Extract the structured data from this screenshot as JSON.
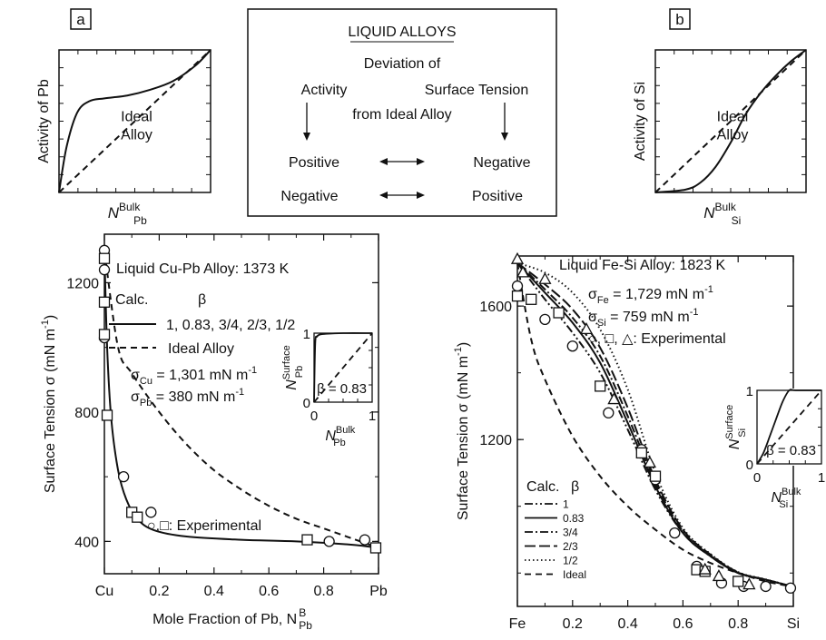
{
  "panel_labels": [
    "a",
    "b"
  ],
  "legend_box": {
    "title": "LIQUID ALLOYS",
    "line1": "Deviation of",
    "col_left": "Activity",
    "col_right": "Surface Tension",
    "line3": "from Ideal Alloy",
    "rows": [
      {
        "left": "Positive",
        "right": "Negative"
      },
      {
        "left": "Negative",
        "right": "Positive"
      }
    ]
  },
  "colors": {
    "ink": "#111111",
    "background": "#ffffff"
  },
  "chart_data": [
    {
      "id": "activity-pb",
      "type": "line",
      "ylabel": "Activity of Pb",
      "xlabel": {
        "main": "N",
        "sub": "Pb",
        "sup": "Bulk"
      },
      "annotation": "Ideal Alloy",
      "xlim": [
        0,
        1
      ],
      "ylim": [
        0,
        1
      ],
      "series": [
        {
          "style": "solid",
          "x": [
            0,
            0.05,
            0.12,
            0.2,
            0.3,
            0.45,
            0.6,
            0.75,
            0.9,
            1.0
          ],
          "y": [
            0,
            0.32,
            0.56,
            0.64,
            0.66,
            0.68,
            0.72,
            0.78,
            0.89,
            1.0
          ]
        },
        {
          "style": "dashed",
          "x": [
            0,
            1
          ],
          "y": [
            0,
            1
          ]
        }
      ]
    },
    {
      "id": "activity-si",
      "type": "line",
      "ylabel": "Activity of Si",
      "xlabel": {
        "main": "N",
        "sub": "Si",
        "sup": "Bulk"
      },
      "annotation": "Ideal Alloy",
      "xlim": [
        0,
        1
      ],
      "ylim": [
        0,
        1
      ],
      "series": [
        {
          "style": "solid",
          "x": [
            0,
            0.2,
            0.3,
            0.4,
            0.5,
            0.6,
            0.7,
            0.8,
            0.9,
            1.0
          ],
          "y": [
            0,
            0.02,
            0.07,
            0.18,
            0.35,
            0.55,
            0.7,
            0.82,
            0.92,
            1.0
          ]
        },
        {
          "style": "dashed",
          "x": [
            0,
            1
          ],
          "y": [
            0,
            1
          ]
        }
      ]
    },
    {
      "id": "cu-pb",
      "type": "line",
      "title": "Liquid Cu-Pb Alloy: 1373 K",
      "xlabel": "Mole Fraction of Pb, N",
      "xlabel_sub": "Pb",
      "xlabel_sup": "B",
      "ylabel": "Surface Tension σ (mN m",
      "ylabel_sup": "-1",
      "ylabel_end": ")",
      "xlim": [
        0,
        1
      ],
      "ylim": [
        300,
        1350
      ],
      "x_ticks": [
        {
          "v": 0,
          "label": "Cu"
        },
        {
          "v": 0.2,
          "label": "0.2"
        },
        {
          "v": 0.4,
          "label": "0.4"
        },
        {
          "v": 0.6,
          "label": "0.6"
        },
        {
          "v": 0.8,
          "label": "0.8"
        },
        {
          "v": 1.0,
          "label": "Pb"
        }
      ],
      "y_ticks": [
        {
          "v": 400,
          "label": "400"
        },
        {
          "v": 800,
          "label": "800"
        },
        {
          "v": 1200,
          "label": "1200"
        }
      ],
      "legend_header": {
        "calc": "Calc.",
        "beta": "β"
      },
      "legend_entries": [
        {
          "style": "solid",
          "label": "1, 0.83, 3/4, 2/3, 1/2"
        },
        {
          "style": "dashed",
          "label": "Ideal Alloy"
        }
      ],
      "params": [
        {
          "sym": "σ",
          "sub": "Cu",
          "val": " = 1,301 mN m",
          "sup": "-1"
        },
        {
          "sym": "σ",
          "sub": "Pb",
          "val": " = 380 mN m",
          "sup": "-1"
        }
      ],
      "experimental_label": "○,□: Experimental",
      "series": [
        {
          "name": "1, 0.83, 3/4, 2/3, 1/2",
          "style": "solid",
          "x": [
            0,
            0.01,
            0.025,
            0.05,
            0.08,
            0.12,
            0.18,
            0.3,
            0.5,
            0.7,
            0.9,
            1.0
          ],
          "y": [
            1301,
            1000,
            780,
            620,
            530,
            470,
            435,
            415,
            405,
            400,
            390,
            380
          ]
        },
        {
          "name": "Ideal Alloy",
          "style": "dashed",
          "x": [
            0,
            0.05,
            0.1,
            0.2,
            0.3,
            0.4,
            0.5,
            0.6,
            0.7,
            0.8,
            0.9,
            1.0
          ],
          "y": [
            1301,
            1000,
            920,
            800,
            700,
            620,
            560,
            510,
            470,
            440,
            410,
            380
          ]
        }
      ],
      "experimental": {
        "circle": {
          "x": [
            0,
            0,
            0,
            0.07,
            0.17,
            0.82,
            0.95
          ],
          "y": [
            1300,
            1240,
            1030,
            600,
            490,
            400,
            405
          ]
        },
        "square": {
          "x": [
            0,
            0,
            0,
            0.01,
            0.1,
            0.12,
            0.74,
            0.99
          ],
          "y": [
            1275,
            1140,
            1040,
            790,
            490,
            475,
            405,
            380
          ]
        }
      },
      "inset": {
        "ylabel": {
          "main": "N",
          "sub": "Pb",
          "sup": "Surface"
        },
        "xlabel": {
          "main": "N",
          "sub": "Pb",
          "sup": "Bulk"
        },
        "tick0": "0",
        "tick1": "1",
        "beta_label": "β = 0.83",
        "series": [
          {
            "style": "solid",
            "x": [
              0,
              0.02,
              0.05,
              0.1,
              0.2,
              0.5,
              1.0
            ],
            "y": [
              0,
              0.85,
              0.95,
              0.98,
              0.99,
              1.0,
              1.0
            ]
          },
          {
            "style": "dashed",
            "x": [
              0,
              1
            ],
            "y": [
              0,
              1
            ]
          }
        ]
      }
    },
    {
      "id": "fe-si",
      "type": "line",
      "title": "Liquid Fe-Si Alloy: 1823 K",
      "xlabel": "Mole Fraction of Si, N",
      "xlabel_sub": "Si",
      "xlabel_sup": "B",
      "ylabel": "Surface Tension σ (mN m",
      "ylabel_sup": "-1",
      "ylabel_end": ")",
      "xlim": [
        0,
        1
      ],
      "ylim": [
        700,
        1750
      ],
      "x_ticks": [
        {
          "v": 0,
          "label": "Fe"
        },
        {
          "v": 0.2,
          "label": "0.2"
        },
        {
          "v": 0.4,
          "label": "0.4"
        },
        {
          "v": 0.6,
          "label": "0.6"
        },
        {
          "v": 0.8,
          "label": "0.8"
        },
        {
          "v": 1.0,
          "label": "Si"
        }
      ],
      "y_ticks": [
        {
          "v": 1200,
          "label": "1200"
        },
        {
          "v": 1600,
          "label": "1600"
        }
      ],
      "params": [
        {
          "sym": "σ",
          "sub": "Fe",
          "val": " = 1,729 mN m",
          "sup": "-1"
        },
        {
          "sym": "σ",
          "sub": "Si",
          "val": " = 759 mN m",
          "sup": "-1"
        }
      ],
      "experimental_label": "○, □, △: Experimental",
      "legend_header": {
        "calc": "Calc.",
        "beta": "β"
      },
      "legend_entries": [
        {
          "style": "dashdotdot",
          "label": "1"
        },
        {
          "style": "solid",
          "label": "0.83"
        },
        {
          "style": "dashdot",
          "label": "3/4"
        },
        {
          "style": "longdash",
          "label": "2/3"
        },
        {
          "style": "dotted",
          "label": "1/2"
        },
        {
          "style": "dashed",
          "label": "Ideal"
        }
      ],
      "series": [
        {
          "name": "1",
          "style": "dashdotdot",
          "x": [
            0,
            0.1,
            0.2,
            0.3,
            0.4,
            0.5,
            0.6,
            0.7,
            0.8,
            0.9,
            1.0
          ],
          "y": [
            1729,
            1620,
            1520,
            1400,
            1230,
            1050,
            920,
            850,
            800,
            780,
            759
          ]
        },
        {
          "name": "0.83",
          "style": "solid",
          "x": [
            0,
            0.1,
            0.2,
            0.3,
            0.4,
            0.5,
            0.6,
            0.7,
            0.8,
            0.9,
            1.0
          ],
          "y": [
            1729,
            1640,
            1550,
            1430,
            1250,
            1060,
            920,
            850,
            800,
            780,
            759
          ]
        },
        {
          "name": "3/4",
          "style": "dashdot",
          "x": [
            0,
            0.1,
            0.2,
            0.3,
            0.4,
            0.5,
            0.6,
            0.7,
            0.8,
            0.9,
            1.0
          ],
          "y": [
            1729,
            1650,
            1565,
            1450,
            1270,
            1070,
            925,
            852,
            801,
            780,
            759
          ]
        },
        {
          "name": "2/3",
          "style": "longdash",
          "x": [
            0,
            0.1,
            0.2,
            0.3,
            0.4,
            0.5,
            0.6,
            0.7,
            0.8,
            0.9,
            1.0
          ],
          "y": [
            1729,
            1665,
            1590,
            1475,
            1295,
            1080,
            930,
            855,
            802,
            780,
            759
          ]
        },
        {
          "name": "1/2",
          "style": "dotted",
          "x": [
            0,
            0.1,
            0.2,
            0.3,
            0.4,
            0.5,
            0.6,
            0.7,
            0.8,
            0.9,
            1.0
          ],
          "y": [
            1729,
            1700,
            1640,
            1530,
            1350,
            1100,
            935,
            857,
            803,
            781,
            759
          ]
        },
        {
          "name": "Ideal",
          "style": "dashed",
          "x": [
            0,
            0.05,
            0.1,
            0.2,
            0.3,
            0.4,
            0.5,
            0.6,
            0.7,
            0.8,
            0.9,
            1.0
          ],
          "y": [
            1729,
            1500,
            1380,
            1210,
            1090,
            1000,
            930,
            870,
            830,
            800,
            775,
            759
          ]
        }
      ],
      "experimental": {
        "circle": {
          "x": [
            0,
            0.1,
            0.2,
            0.33,
            0.45,
            0.5,
            0.57,
            0.65,
            0.74,
            0.82,
            0.9,
            0.99
          ],
          "y": [
            1660,
            1560,
            1480,
            1280,
            1170,
            1080,
            920,
            820,
            770,
            760,
            760,
            755
          ]
        },
        "square": {
          "x": [
            0,
            0.05,
            0.15,
            0.3,
            0.45,
            0.5,
            0.65,
            0.68,
            0.8
          ],
          "y": [
            1630,
            1620,
            1580,
            1360,
            1160,
            1090,
            810,
            805,
            775
          ]
        },
        "triangle": {
          "x": [
            0,
            0.02,
            0.1,
            0.25,
            0.35,
            0.48,
            0.68,
            0.73,
            0.84
          ],
          "y": [
            1740,
            1700,
            1680,
            1530,
            1320,
            1130,
            810,
            790,
            765
          ]
        }
      },
      "inset": {
        "ylabel": {
          "main": "N",
          "sub": "Si",
          "sup": "Surface"
        },
        "xlabel": {
          "main": "N",
          "sub": "Si",
          "sup": "Bulk"
        },
        "tick0": "0",
        "tick1": "1",
        "beta_label": "β = 0.83",
        "series": [
          {
            "style": "solid",
            "x": [
              0,
              0.1,
              0.2,
              0.3,
              0.4,
              0.5,
              0.6,
              1.0
            ],
            "y": [
              0,
              0.15,
              0.38,
              0.62,
              0.85,
              1.0,
              1.0,
              1.0
            ]
          },
          {
            "style": "dashed",
            "x": [
              0,
              1
            ],
            "y": [
              0,
              1
            ]
          }
        ]
      }
    }
  ]
}
